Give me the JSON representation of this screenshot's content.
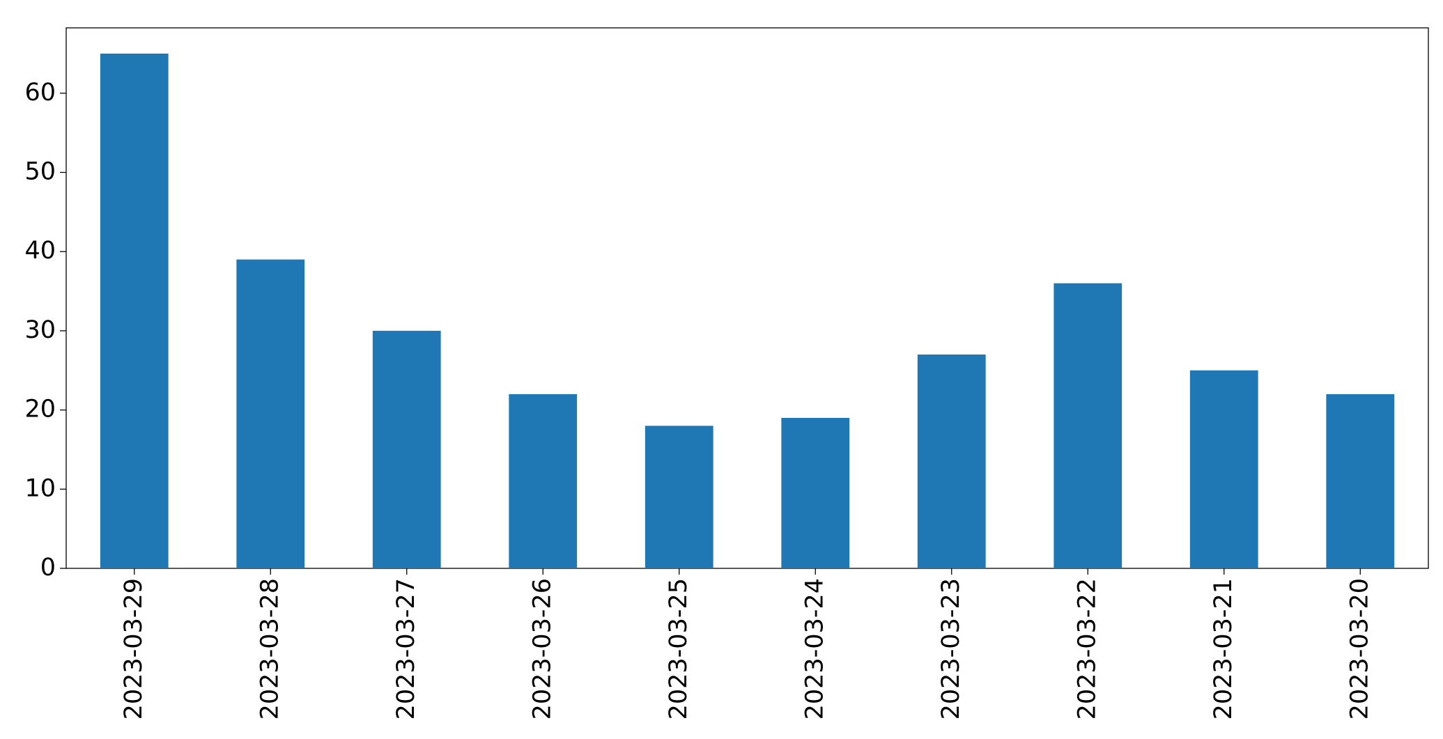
{
  "chart_data": {
    "type": "bar",
    "categories": [
      "2023-03-29",
      "2023-03-28",
      "2023-03-27",
      "2023-03-26",
      "2023-03-25",
      "2023-03-24",
      "2023-03-23",
      "2023-03-22",
      "2023-03-21",
      "2023-03-20"
    ],
    "values": [
      65,
      39,
      30,
      22,
      18,
      19,
      27,
      36,
      25,
      22
    ],
    "color": "#1f77b4",
    "ylim": [
      0,
      68.25
    ],
    "yticks": [
      0,
      10,
      20,
      30,
      40,
      50,
      60
    ],
    "grid": false
  }
}
